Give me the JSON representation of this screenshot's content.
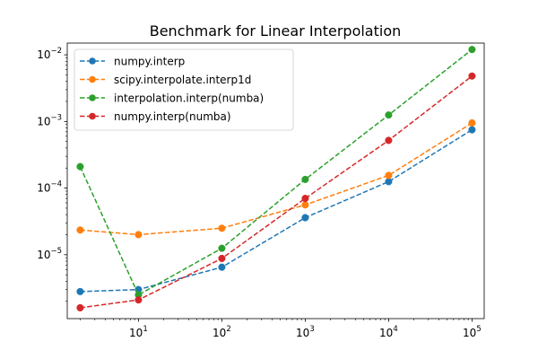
{
  "chart_data": {
    "type": "line",
    "title": "Benchmark for Linear Interpolation",
    "xlabel": "",
    "ylabel": "",
    "x_scale": "log",
    "y_scale": "log",
    "xlim": [
      1.4,
      140000
    ],
    "ylim": [
      1.1e-06,
      0.015
    ],
    "x_ticks": [
      {
        "value": 10,
        "base": "10",
        "exp": "1"
      },
      {
        "value": 100,
        "base": "10",
        "exp": "2"
      },
      {
        "value": 1000,
        "base": "10",
        "exp": "3"
      },
      {
        "value": 10000,
        "base": "10",
        "exp": "4"
      },
      {
        "value": 100000,
        "base": "10",
        "exp": "5"
      }
    ],
    "y_ticks": [
      {
        "value": 1e-05,
        "base": "10",
        "exp": "−5"
      },
      {
        "value": 0.0001,
        "base": "10",
        "exp": "−4"
      },
      {
        "value": 0.001,
        "base": "10",
        "exp": "−3"
      },
      {
        "value": 0.01,
        "base": "10",
        "exp": "−2"
      }
    ],
    "grid": false,
    "legend_position": "upper-left",
    "x": [
      2,
      10,
      100,
      1000,
      10000,
      100000
    ],
    "series": [
      {
        "name": "numpy.interp",
        "color": "#1f77b4",
        "values": [
          2.8e-06,
          3e-06,
          6.5e-06,
          3.6e-05,
          0.000125,
          0.00075
        ]
      },
      {
        "name": "scipy.interpolate.interp1d",
        "color": "#ff7f0e",
        "values": [
          2.35e-05,
          2e-05,
          2.5e-05,
          5.6e-05,
          0.000155,
          0.00095
        ]
      },
      {
        "name": "interpolation.interp(numba)",
        "color": "#2ca02c",
        "values": [
          0.00021,
          2.5e-06,
          1.25e-05,
          0.000135,
          0.00125,
          0.012
        ]
      },
      {
        "name": "numpy.interp(numba)",
        "color": "#d62728",
        "values": [
          1.6e-06,
          2.1e-06,
          8.8e-06,
          7e-05,
          0.00052,
          0.0048
        ]
      }
    ]
  }
}
